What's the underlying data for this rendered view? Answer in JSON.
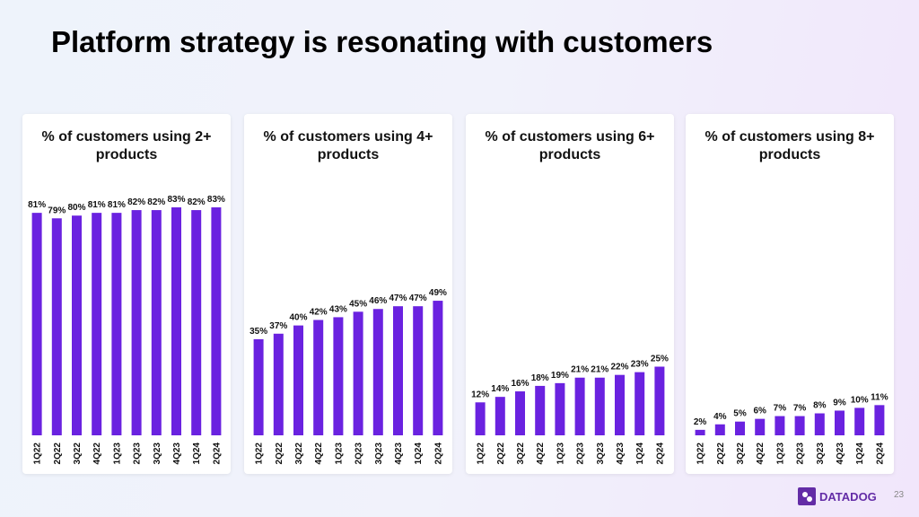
{
  "title": "Platform strategy is resonating with customers",
  "brand": "DATADOG",
  "page_number": "23",
  "chart_data": [
    {
      "type": "bar",
      "title": "% of customers using 2+ products",
      "color": "#6a22e0",
      "categories": [
        "1Q22",
        "2Q22",
        "3Q22",
        "4Q22",
        "1Q23",
        "2Q23",
        "3Q23",
        "4Q23",
        "1Q24",
        "2Q24"
      ],
      "values": [
        81,
        79,
        80,
        81,
        81,
        82,
        82,
        83,
        82,
        83
      ],
      "value_labels": [
        "81%",
        "79%",
        "80%",
        "81%",
        "81%",
        "82%",
        "82%",
        "83%",
        "82%",
        "83%"
      ],
      "ylim": [
        0,
        100
      ]
    },
    {
      "type": "bar",
      "title": "% of customers using 4+ products",
      "color": "#6a22e0",
      "categories": [
        "1Q22",
        "2Q22",
        "3Q22",
        "4Q22",
        "1Q23",
        "2Q23",
        "3Q23",
        "4Q23",
        "1Q24",
        "2Q24"
      ],
      "values": [
        35,
        37,
        40,
        42,
        43,
        45,
        46,
        47,
        47,
        49
      ],
      "value_labels": [
        "35%",
        "37%",
        "40%",
        "42%",
        "43%",
        "45%",
        "46%",
        "47%",
        "47%",
        "49%"
      ],
      "ylim": [
        0,
        100
      ]
    },
    {
      "type": "bar",
      "title": "% of customers using 6+ products",
      "color": "#6a22e0",
      "categories": [
        "1Q22",
        "2Q22",
        "3Q22",
        "4Q22",
        "1Q23",
        "2Q23",
        "3Q23",
        "4Q23",
        "1Q24",
        "2Q24"
      ],
      "values": [
        12,
        14,
        16,
        18,
        19,
        21,
        21,
        22,
        23,
        25
      ],
      "value_labels": [
        "12%",
        "14%",
        "16%",
        "18%",
        "19%",
        "21%",
        "21%",
        "22%",
        "23%",
        "25%"
      ],
      "ylim": [
        0,
        100
      ]
    },
    {
      "type": "bar",
      "title": "% of customers using 8+ products",
      "color": "#6a22e0",
      "categories": [
        "1Q22",
        "2Q22",
        "3Q22",
        "4Q22",
        "1Q23",
        "2Q23",
        "3Q23",
        "4Q23",
        "1Q24",
        "2Q24"
      ],
      "values": [
        2,
        4,
        5,
        6,
        7,
        7,
        8,
        9,
        10,
        11
      ],
      "value_labels": [
        "2%",
        "4%",
        "5%",
        "6%",
        "7%",
        "7%",
        "8%",
        "9%",
        "10%",
        "11%"
      ],
      "ylim": [
        0,
        100
      ]
    }
  ]
}
